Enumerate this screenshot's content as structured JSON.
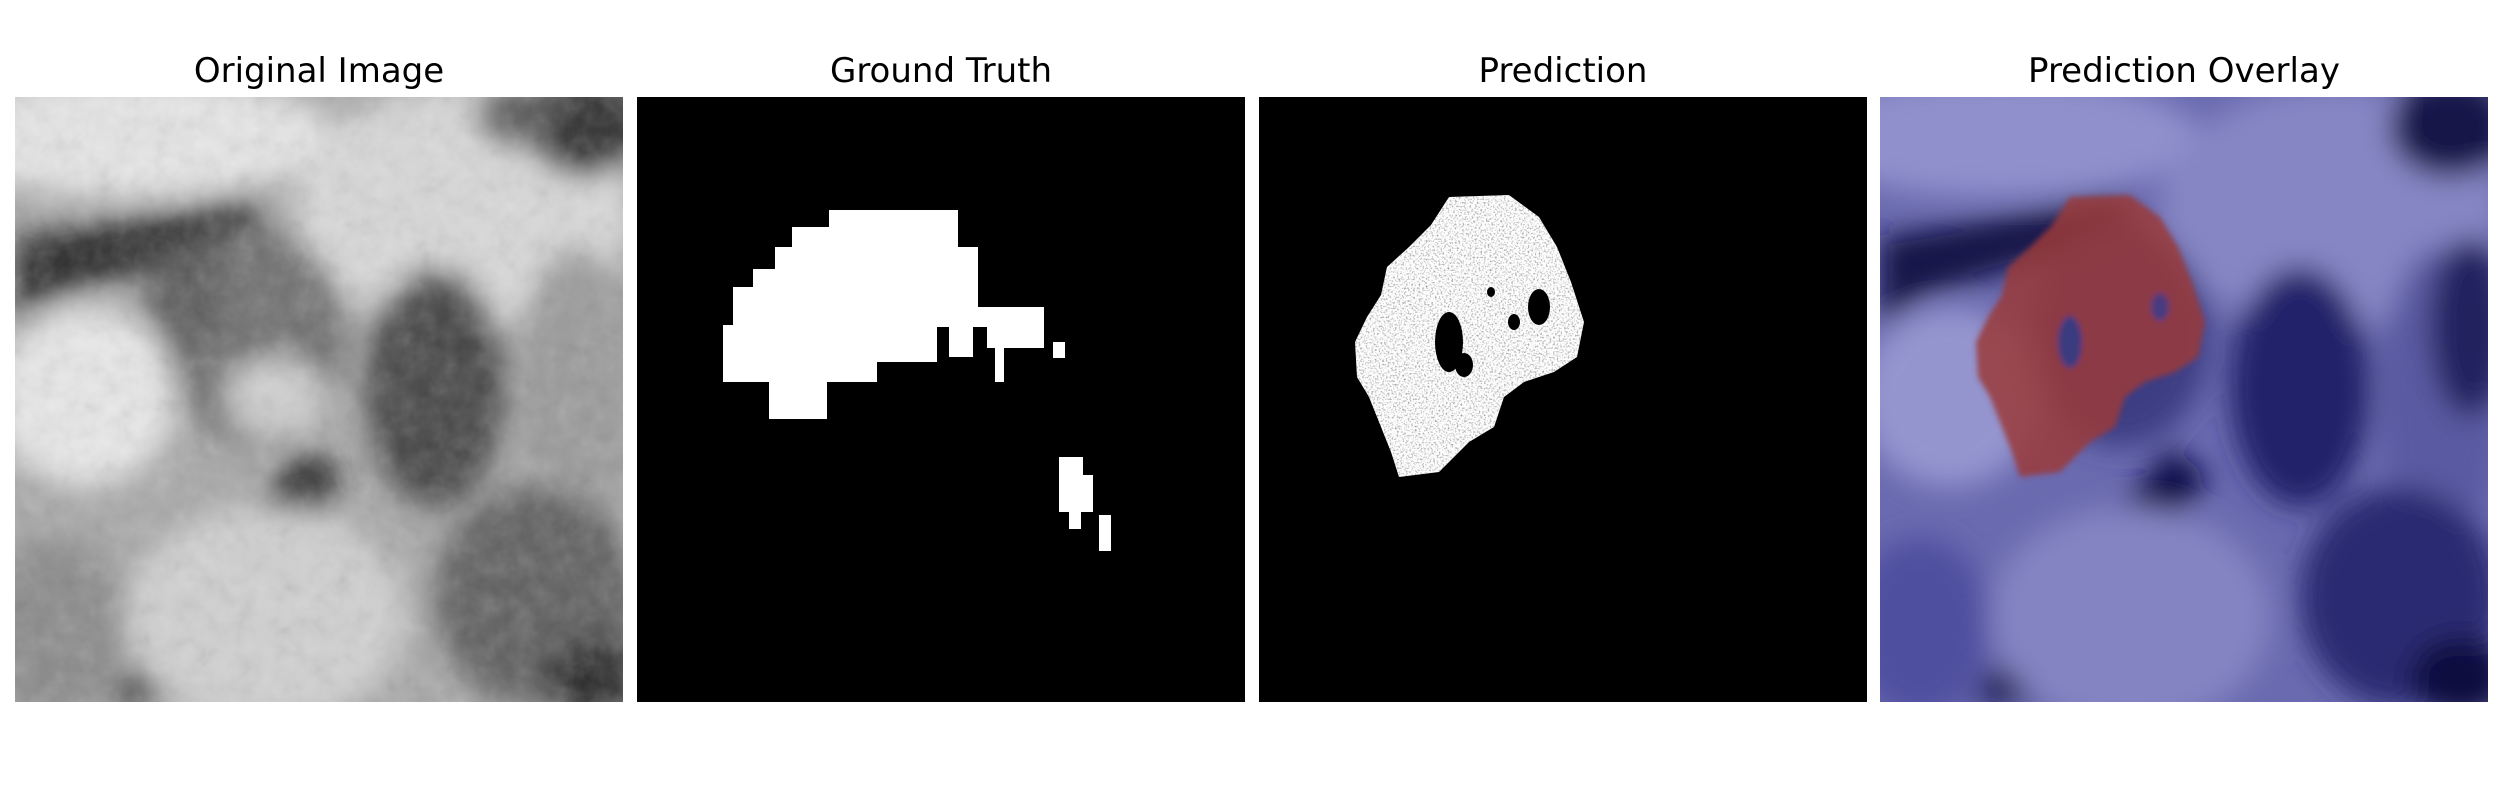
{
  "panels": [
    {
      "title": "Original Image",
      "colormap": "gray"
    },
    {
      "title": "Ground Truth",
      "colormap": "binary-mask"
    },
    {
      "title": "Prediction",
      "colormap": "binary-mask"
    },
    {
      "title": "Prediction Overlay",
      "colormap": "blue-on-image-with-red-mask"
    }
  ],
  "colors": {
    "mask_foreground": "#ffffff",
    "mask_background": "#000000",
    "overlay_tint": "#1a1a80",
    "overlay_mask": "#b0382a"
  }
}
